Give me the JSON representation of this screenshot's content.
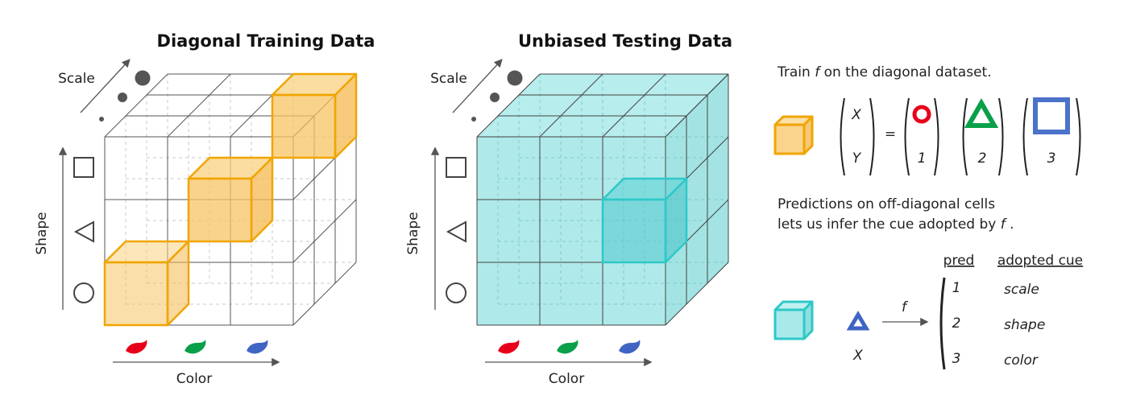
{
  "panels": [
    {
      "title": "Diagonal Training Data",
      "scale_label": "Scale",
      "shape_label": "Shape",
      "color_label": "Color"
    },
    {
      "title": "Unbiased Testing Data",
      "scale_label": "Scale",
      "shape_label": "Shape",
      "color_label": "Color"
    }
  ],
  "explanation": {
    "train": {
      "before": "Train ",
      "f": "f",
      "after": " on the diagonal dataset."
    },
    "vector": [
      "X",
      "Y"
    ],
    "equals": "=",
    "labels": [
      "1",
      "2",
      "3"
    ],
    "predictions": {
      "line1": "Predictions on off-diagonal cells",
      "line2_before": "lets us infer the cue adopted by ",
      "f": "f",
      "line2_after": " ."
    },
    "table": {
      "headers": [
        "pred",
        "adopted cue"
      ],
      "rows": [
        [
          "1",
          "scale"
        ],
        [
          "2",
          "shape"
        ],
        [
          "3",
          "color"
        ]
      ]
    },
    "function": "f",
    "input": "X"
  }
}
